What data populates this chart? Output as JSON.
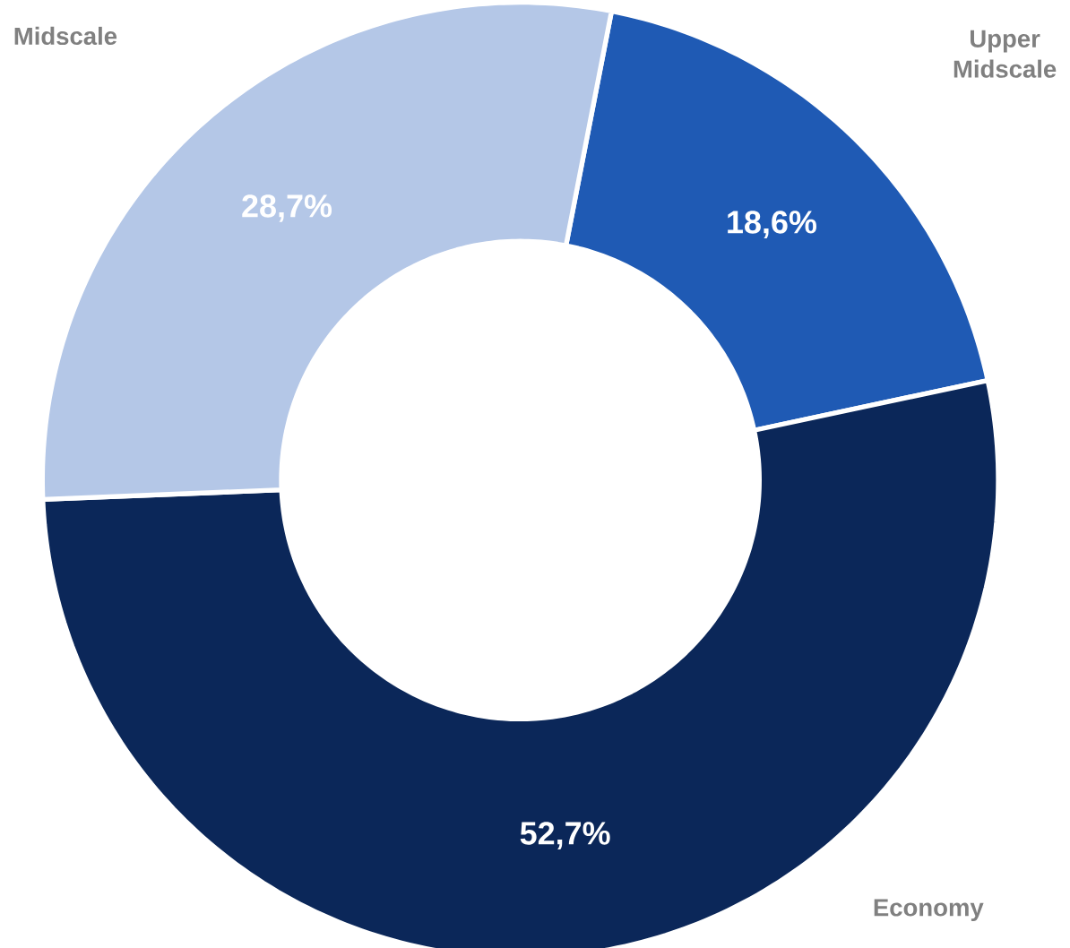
{
  "chart_data": {
    "type": "donut",
    "categories": [
      "Upper Midscale",
      "Economy",
      "Midscale"
    ],
    "values": [
      18.6,
      52.7,
      28.7
    ],
    "value_labels": [
      "18,6%",
      "52,7%",
      "28,7%"
    ],
    "colors": [
      "#1f5ab4",
      "#0b2759",
      "#b4c7e7"
    ]
  }
}
